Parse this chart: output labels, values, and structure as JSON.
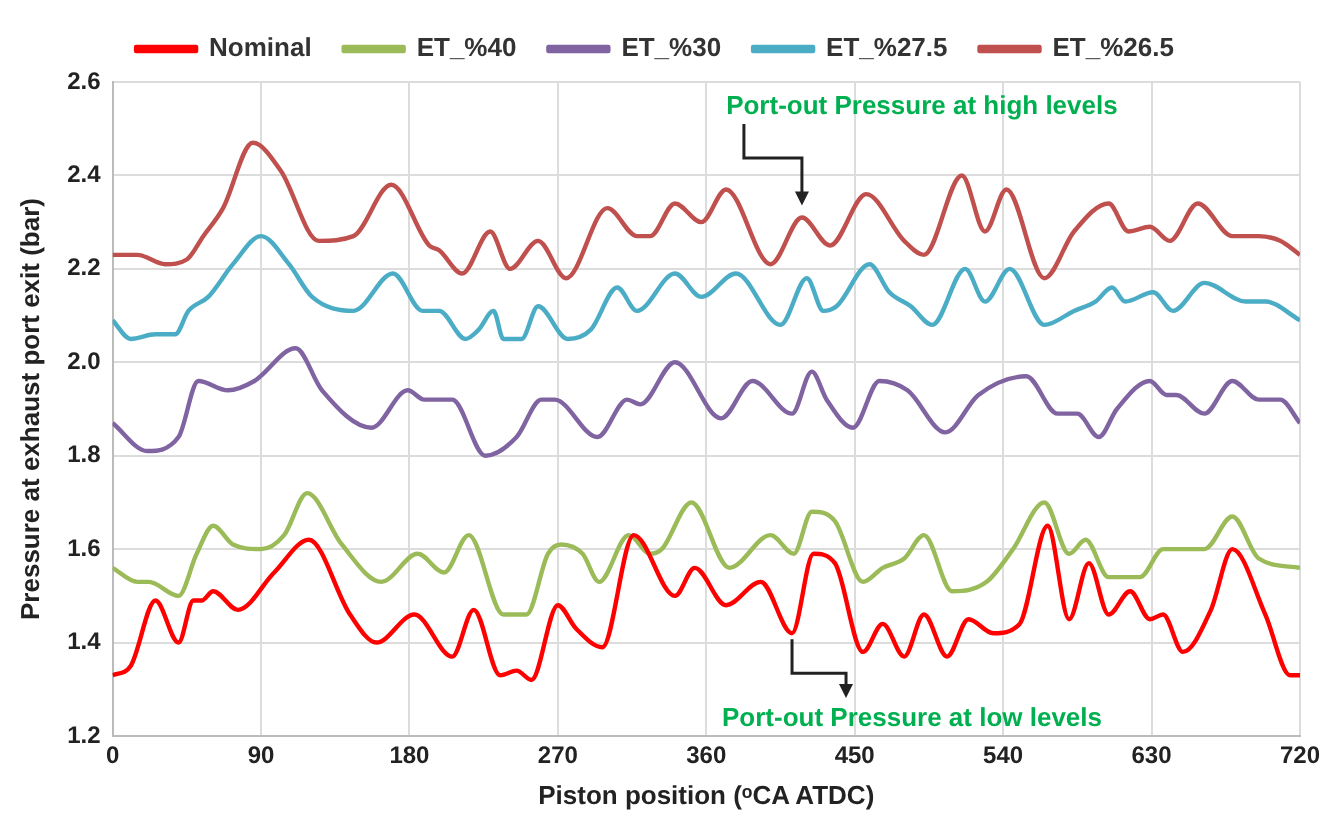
{
  "chart_data": {
    "type": "line",
    "xlabel": "Piston position (ᵒCA ATDC)",
    "ylabel": "Pressure at exhaust port exit (bar)",
    "xlim": [
      0,
      720
    ],
    "xticks": [
      0,
      90,
      180,
      270,
      360,
      450,
      540,
      630,
      720
    ],
    "ylim": [
      1.2,
      2.6
    ],
    "yticks": [
      1.2,
      1.4,
      1.6,
      1.8,
      {
        "value": 2,
        "label": "2.0"
      },
      2.2,
      2.4,
      2.6
    ],
    "grid": true,
    "legend": "top",
    "marker": "none",
    "annotations": [
      {
        "text": "Port-out Pressure at high levels",
        "x": 418,
        "y": 2.31
      },
      {
        "text": "Port-out Pressure at low levels",
        "x": 412,
        "y": 1.42
      }
    ],
    "series": [
      {
        "name": "Nominal",
        "color": "#ff0000",
        "x": [
          0,
          11,
          26,
          40,
          49,
          54,
          61,
          76,
          98,
          119,
          144,
          160,
          183,
          206,
          219,
          235,
          245,
          254,
          270,
          281,
          297,
          316,
          341,
          353,
          372,
          393,
          412,
          425,
          438,
          455,
          467,
          480,
          492,
          506,
          519,
          534,
          550,
          567,
          580,
          592,
          604,
          617,
          629,
          637,
          649,
          666,
          679,
          699,
          714,
          720
        ],
        "values": [
          1.33,
          1.35,
          1.49,
          1.4,
          1.49,
          1.49,
          1.51,
          1.47,
          1.55,
          1.62,
          1.46,
          1.4,
          1.46,
          1.37,
          1.47,
          1.33,
          1.34,
          1.32,
          1.48,
          1.43,
          1.39,
          1.63,
          1.5,
          1.56,
          1.48,
          1.53,
          1.42,
          1.59,
          1.57,
          1.38,
          1.44,
          1.37,
          1.46,
          1.37,
          1.45,
          1.42,
          1.44,
          1.65,
          1.45,
          1.57,
          1.46,
          1.51,
          1.45,
          1.46,
          1.38,
          1.47,
          1.6,
          1.46,
          1.33,
          1.33
        ]
      },
      {
        "name": "ET_%40",
        "color": "#9bbb59",
        "x": [
          0,
          15,
          22,
          40,
          51,
          61,
          73,
          90,
          104,
          118,
          139,
          163,
          185,
          201,
          216,
          237,
          251,
          264,
          272,
          285,
          295,
          313,
          326,
          333,
          351,
          374,
          399,
          413,
          424,
          438,
          455,
          467,
          480,
          492,
          509,
          530,
          546,
          565,
          580,
          590,
          604,
          623,
          637,
          662,
          679,
          695,
          720
        ],
        "values": [
          1.56,
          1.53,
          1.53,
          1.5,
          1.59,
          1.65,
          1.61,
          1.6,
          1.63,
          1.72,
          1.61,
          1.53,
          1.59,
          1.55,
          1.63,
          1.46,
          1.46,
          1.59,
          1.61,
          1.59,
          1.53,
          1.63,
          1.59,
          1.6,
          1.7,
          1.56,
          1.63,
          1.59,
          1.68,
          1.66,
          1.53,
          1.56,
          1.58,
          1.63,
          1.51,
          1.53,
          1.6,
          1.7,
          1.59,
          1.62,
          1.54,
          1.54,
          1.6,
          1.6,
          1.67,
          1.58,
          1.56
        ]
      },
      {
        "name": "ET_%30",
        "color": "#8064a2",
        "x": [
          0,
          21,
          40,
          52,
          70,
          86,
          111,
          127,
          157,
          179,
          189,
          206,
          226,
          245,
          260,
          268,
          294,
          312,
          320,
          341,
          369,
          388,
          412,
          424,
          433,
          449,
          465,
          482,
          505,
          525,
          554,
          573,
          585,
          598,
          609,
          629,
          639,
          645,
          662,
          679,
          695,
          708,
          720
        ],
        "values": [
          1.87,
          1.81,
          1.84,
          1.96,
          1.94,
          1.96,
          2.03,
          1.94,
          1.86,
          1.94,
          1.92,
          1.92,
          1.8,
          1.84,
          1.92,
          1.92,
          1.84,
          1.92,
          1.91,
          2,
          1.88,
          1.96,
          1.89,
          1.98,
          1.92,
          1.86,
          1.96,
          1.94,
          1.85,
          1.93,
          1.97,
          1.89,
          1.89,
          1.84,
          1.9,
          1.96,
          1.93,
          1.93,
          1.89,
          1.96,
          1.92,
          1.92,
          1.87
        ]
      },
      {
        "name": "ET_%27.5",
        "color": "#4bacc6",
        "x": [
          0,
          11,
          26,
          38,
          46,
          58,
          73,
          90,
          107,
          121,
          146,
          170,
          188,
          198,
          214,
          222,
          231,
          237,
          248,
          258,
          276,
          290,
          306,
          318,
          341,
          357,
          378,
          405,
          421,
          431,
          439,
          459,
          471,
          484,
          497,
          517,
          529,
          544,
          565,
          583,
          596,
          606,
          614,
          631,
          643,
          662,
          687,
          699,
          720
        ],
        "values": [
          2.09,
          2.05,
          2.06,
          2.06,
          2.11,
          2.14,
          2.21,
          2.27,
          2.21,
          2.14,
          2.11,
          2.19,
          2.11,
          2.11,
          2.05,
          2.07,
          2.11,
          2.05,
          2.05,
          2.12,
          2.05,
          2.07,
          2.16,
          2.11,
          2.19,
          2.14,
          2.19,
          2.08,
          2.18,
          2.11,
          2.12,
          2.21,
          2.15,
          2.12,
          2.08,
          2.2,
          2.13,
          2.2,
          2.08,
          2.11,
          2.13,
          2.16,
          2.13,
          2.15,
          2.11,
          2.17,
          2.13,
          2.13,
          2.09
        ]
      },
      {
        "name": "ET_%26.5",
        "color": "#c0504d",
        "x": [
          0,
          15,
          32,
          45,
          55,
          67,
          85,
          102,
          125,
          146,
          169,
          192,
          198,
          212,
          229,
          241,
          258,
          275,
          300,
          318,
          326,
          341,
          357,
          372,
          399,
          418,
          435,
          457,
          480,
          492,
          515,
          529,
          542,
          565,
          583,
          604,
          616,
          629,
          641,
          658,
          679,
          695,
          708,
          720
        ],
        "values": [
          2.23,
          2.23,
          2.21,
          2.22,
          2.27,
          2.33,
          2.47,
          2.41,
          2.26,
          2.27,
          2.38,
          2.25,
          2.24,
          2.19,
          2.28,
          2.2,
          2.26,
          2.18,
          2.33,
          2.27,
          2.27,
          2.34,
          2.3,
          2.37,
          2.21,
          2.31,
          2.25,
          2.36,
          2.26,
          2.23,
          2.4,
          2.28,
          2.37,
          2.18,
          2.28,
          2.34,
          2.28,
          2.29,
          2.26,
          2.34,
          2.27,
          2.27,
          2.26,
          2.23
        ]
      }
    ]
  }
}
